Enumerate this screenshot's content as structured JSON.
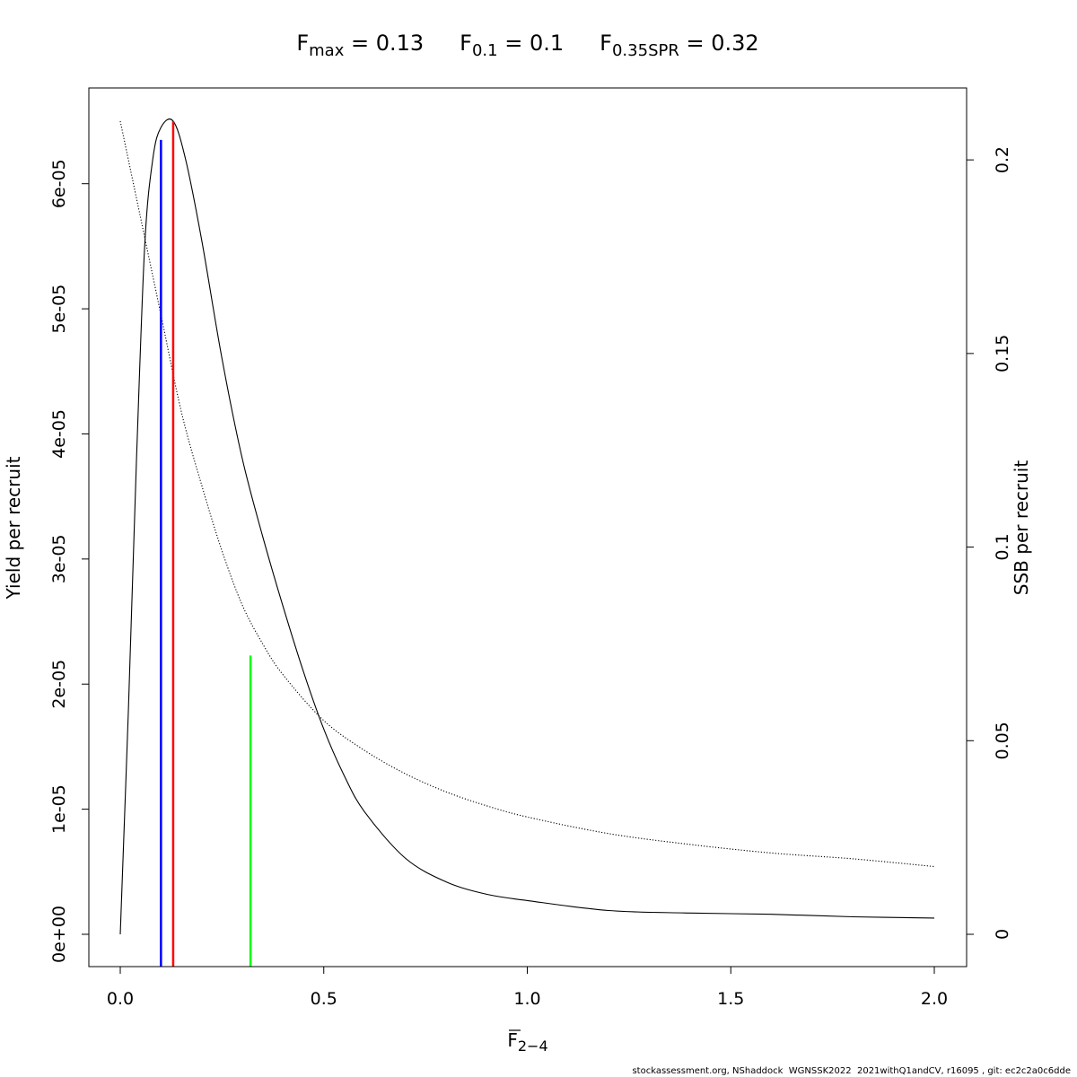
{
  "chart_data": {
    "type": "line",
    "title_parts": [
      {
        "base": "F",
        "sub": "max",
        "rest": " = 0.13"
      },
      {
        "base": "F",
        "sub": "0.1",
        "rest": " = 0.1"
      },
      {
        "base": "F",
        "sub": "0.35SPR",
        "rest": " = 0.32"
      }
    ],
    "xlabel": {
      "base": "F",
      "sub": "2−4"
    },
    "ylabel_left": "Yield per recruit",
    "ylabel_right": "SSB per recruit",
    "xlim": [
      0,
      2
    ],
    "ylim_left": [
      0,
      6.5e-05
    ],
    "ylim_right": [
      0,
      0.21
    ],
    "x_ticks": [
      "0.0",
      "0.5",
      "1.0",
      "1.5",
      "2.0"
    ],
    "y_left_ticks": [
      "0e+00",
      "1e-05",
      "2e-05",
      "3e-05",
      "4e-05",
      "5e-05",
      "6e-05"
    ],
    "y_right_ticks": [
      "0",
      "0.05",
      "0.1",
      "0.15",
      "0.2"
    ],
    "series": [
      {
        "axis": "left",
        "style": "solid",
        "color": "#000000",
        "x": [
          0,
          0.02,
          0.04,
          0.06,
          0.08,
          0.1,
          0.13,
          0.16,
          0.2,
          0.25,
          0.3,
          0.35,
          0.4,
          0.45,
          0.5,
          0.55,
          0.6,
          0.7,
          0.8,
          0.9,
          1.0,
          1.2,
          1.4,
          1.6,
          1.8,
          2.0
        ],
        "values": [
          0,
          1.8e-05,
          3.8e-05,
          5.5e-05,
          6.2e-05,
          6.45e-05,
          6.5e-05,
          6.2e-05,
          5.55e-05,
          4.6e-05,
          3.8e-05,
          3.18e-05,
          2.62e-05,
          2.1e-05,
          1.64e-05,
          1.27e-05,
          9.8e-06,
          6.1e-06,
          4.2e-06,
          3.2e-06,
          2.7e-06,
          1.9e-06,
          1.7e-06,
          1.6e-06,
          1.4e-06,
          1.3e-06
        ]
      },
      {
        "axis": "right",
        "style": "dotted",
        "color": "#000000",
        "x": [
          0,
          0.05,
          0.1,
          0.15,
          0.2,
          0.25,
          0.3,
          0.35,
          0.4,
          0.5,
          0.6,
          0.7,
          0.8,
          0.9,
          1.0,
          1.2,
          1.4,
          1.6,
          1.8,
          2.0
        ],
        "values": [
          0.21,
          0.185,
          0.16,
          0.135,
          0.116,
          0.099,
          0.085,
          0.075,
          0.067,
          0.0552,
          0.0475,
          0.0415,
          0.0368,
          0.0332,
          0.0303,
          0.026,
          0.0232,
          0.021,
          0.0195,
          0.0175
        ]
      }
    ],
    "reference_lines": [
      {
        "x": 0.1,
        "value": 6.35e-05,
        "axis": "left",
        "color": "#0000ff"
      },
      {
        "x": 0.13,
        "value": 6.5e-05,
        "axis": "left",
        "color": "#ff0000"
      },
      {
        "x": 0.32,
        "value": 0.072,
        "axis": "right",
        "color": "#00ff00"
      }
    ],
    "grid": false
  },
  "footer": "stockassessment.org, NShaddock  WGNSSK2022  2021withQ1andCV, r16095 , git: ec2c2a0c6dde"
}
